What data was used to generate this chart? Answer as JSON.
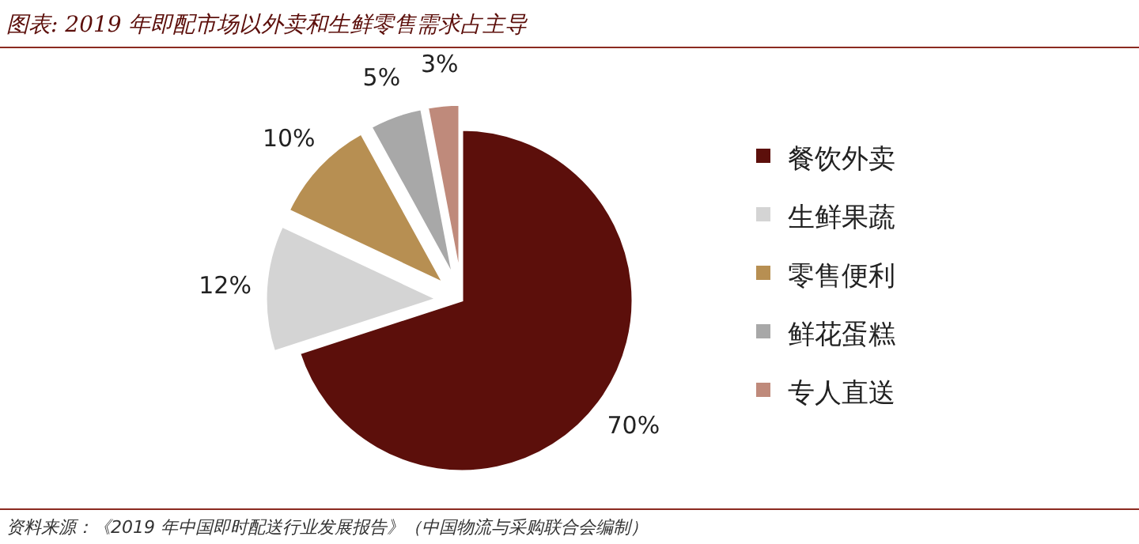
{
  "chart_data": {
    "type": "pie",
    "title": "图表: 2019 年即配市场以外卖和生鲜零售需求占主导",
    "categories": [
      "餐饮外卖",
      "生鲜果蔬",
      "零售便利",
      "鲜花蛋糕",
      "专人直送"
    ],
    "values": [
      70,
      12,
      10,
      5,
      3
    ],
    "colors": [
      "#5c0f0b",
      "#d4d4d4",
      "#b78f52",
      "#a8a8a8",
      "#bf8a7b"
    ],
    "value_labels": [
      "70%",
      "12%",
      "10%",
      "5%",
      "3%"
    ],
    "legend": "right",
    "annotations": [
      "资料来源：《2019 年中国即时配送行业发展报告》（中国物流与采购联合会编制）"
    ]
  }
}
